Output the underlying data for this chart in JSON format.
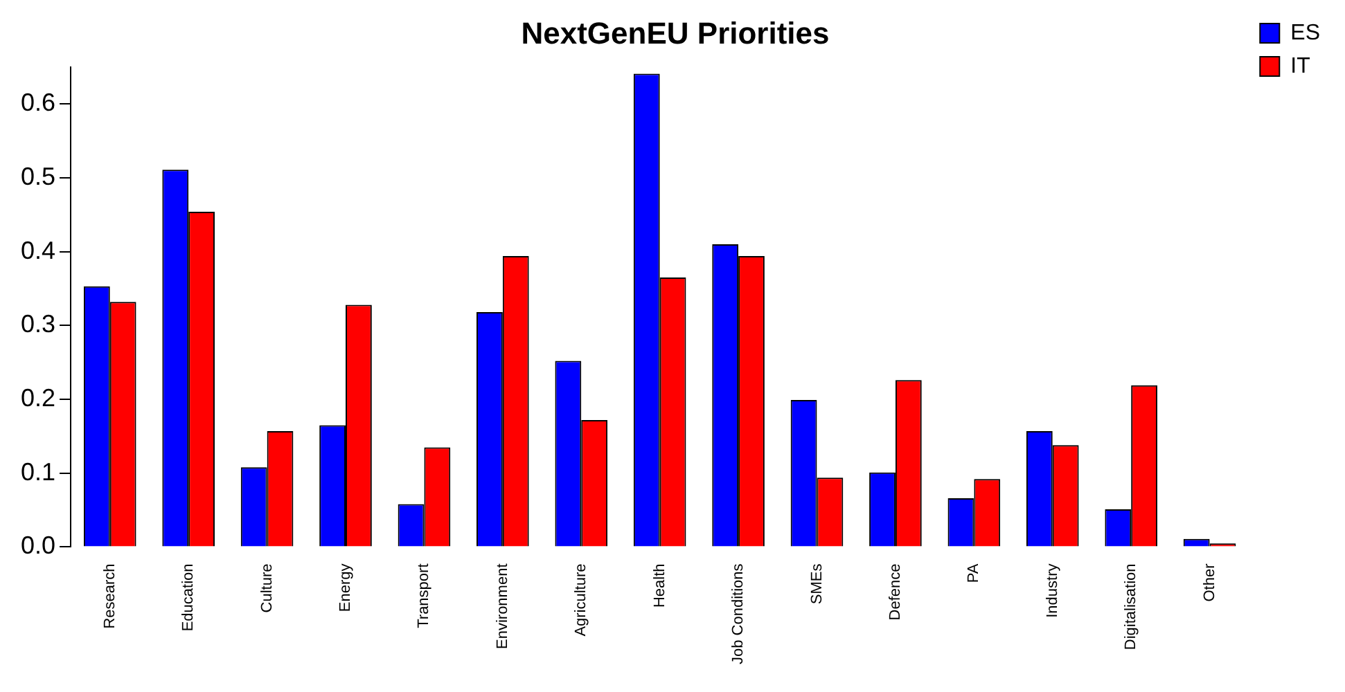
{
  "chart_data": {
    "type": "bar",
    "title": "NextGenEU Priorities",
    "categories": [
      "Research",
      "Education",
      "Culture",
      "Energy",
      "Transport",
      "Environment",
      "Agriculture",
      "Health",
      "Job Conditions",
      "SMEs",
      "Defence",
      "PA",
      "Industry",
      "Digitalisation",
      "Other"
    ],
    "series": [
      {
        "name": "ES",
        "color": "#0000ff",
        "values": [
          0.353,
          0.511,
          0.108,
          0.165,
          0.058,
          0.318,
          0.252,
          0.641,
          0.41,
          0.199,
          0.101,
          0.066,
          0.157,
          0.051,
          0.011
        ]
      },
      {
        "name": "IT",
        "color": "#ff0000",
        "values": [
          0.332,
          0.454,
          0.157,
          0.328,
          0.135,
          0.394,
          0.172,
          0.365,
          0.394,
          0.094,
          0.226,
          0.092,
          0.138,
          0.219,
          0.005
        ]
      }
    ],
    "ylim": [
      0,
      0.65
    ],
    "yticks": [
      {
        "value": 0,
        "label": "0.0"
      },
      0.1,
      0.2,
      0.3,
      0.4,
      0.5,
      0.6
    ],
    "grid": false,
    "legend": "top right"
  }
}
